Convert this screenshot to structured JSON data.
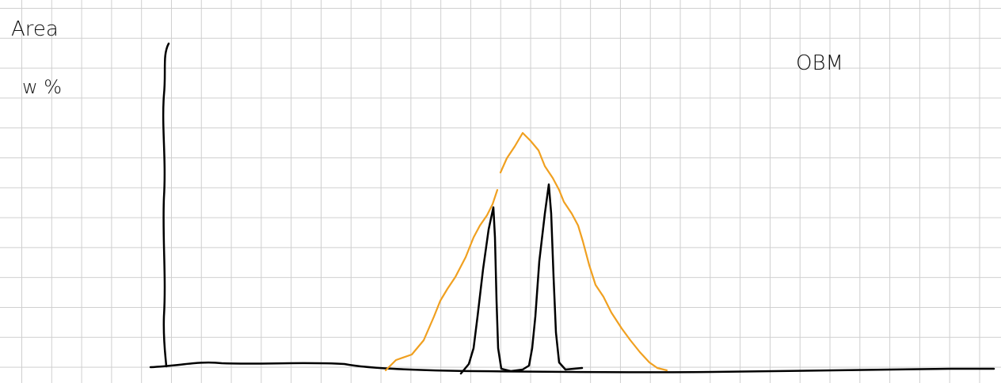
{
  "labels": {
    "axis_line1": "Area",
    "axis_line2": "w %",
    "annotation": "OBM"
  }
}
